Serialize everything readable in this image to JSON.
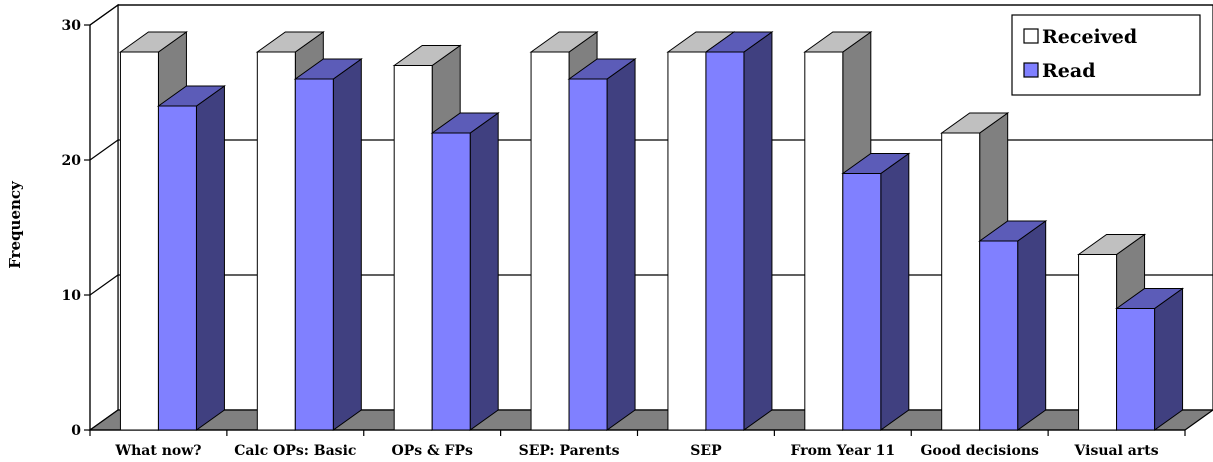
{
  "chart_data": {
    "type": "bar",
    "title": "",
    "xlabel": "",
    "ylabel": "Frequency",
    "ylim": [
      0,
      30
    ],
    "yticks": [
      0,
      10,
      20,
      30
    ],
    "grid": true,
    "legend_position": "top-right",
    "categories": [
      "What now?",
      "Calc OPs: Basic",
      "OPs & FPs",
      "SEP: Parents",
      "SEP",
      "From Year 11",
      "Good decisions",
      "Visual arts"
    ],
    "series": [
      {
        "name": "Received",
        "values": [
          28,
          28,
          27,
          28,
          28,
          28,
          22,
          13
        ],
        "color": "#ffffff"
      },
      {
        "name": "Read",
        "values": [
          24,
          26,
          22,
          26,
          28,
          19,
          14,
          9
        ],
        "color": "#8080ff"
      }
    ]
  }
}
